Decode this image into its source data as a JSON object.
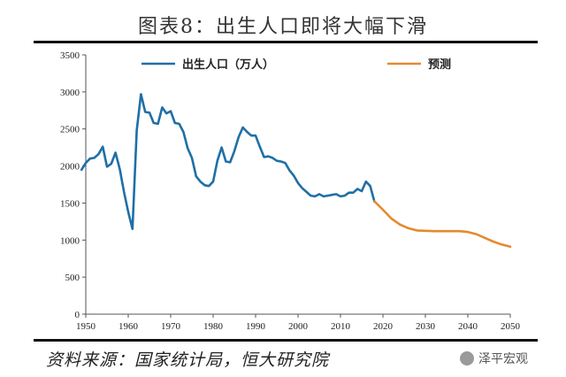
{
  "title": "图表8：出生人口即将大幅下滑",
  "source": "资料来源：国家统计局，恒大研究院",
  "watermark": "泽平宏观",
  "colors": {
    "actual": "#1f6fa6",
    "forecast": "#e58a2e",
    "axis": "#555555"
  },
  "chart_data": {
    "type": "line",
    "xlim": [
      1950,
      2050
    ],
    "ylim": [
      0,
      3500
    ],
    "xticks": [
      1950,
      1960,
      1970,
      1980,
      1990,
      2000,
      2010,
      2020,
      2030,
      2040,
      2050
    ],
    "yticks": [
      0,
      500,
      1000,
      1500,
      2000,
      2500,
      3000,
      3500
    ],
    "grid": false,
    "legend": "top",
    "series": [
      {
        "name": "出生人口（万人）",
        "color": "#1f6fa6",
        "x": [
          1949,
          1950,
          1951,
          1952,
          1953,
          1954,
          1955,
          1956,
          1957,
          1958,
          1959,
          1960,
          1961,
          1962,
          1963,
          1964,
          1965,
          1966,
          1967,
          1968,
          1969,
          1970,
          1971,
          1972,
          1973,
          1974,
          1975,
          1976,
          1977,
          1978,
          1979,
          1980,
          1981,
          1982,
          1983,
          1984,
          1985,
          1986,
          1987,
          1988,
          1989,
          1990,
          1991,
          1992,
          1993,
          1994,
          1995,
          1996,
          1997,
          1998,
          1999,
          2000,
          2001,
          2002,
          2003,
          2004,
          2005,
          2006,
          2007,
          2008,
          2009,
          2010,
          2011,
          2012,
          2013,
          2014,
          2015,
          2016,
          2017,
          2018
        ],
        "y": [
          1950,
          2042,
          2100,
          2110,
          2160,
          2260,
          1990,
          2030,
          2180,
          1960,
          1650,
          1380,
          1150,
          2480,
          2970,
          2730,
          2720,
          2580,
          2570,
          2790,
          2710,
          2740,
          2580,
          2570,
          2460,
          2240,
          2110,
          1860,
          1790,
          1740,
          1730,
          1790,
          2070,
          2250,
          2060,
          2050,
          2200,
          2390,
          2520,
          2460,
          2410,
          2410,
          2260,
          2120,
          2130,
          2110,
          2070,
          2060,
          2040,
          1940,
          1870,
          1770,
          1700,
          1650,
          1600,
          1590,
          1620,
          1590,
          1600,
          1610,
          1620,
          1590,
          1600,
          1640,
          1640,
          1690,
          1660,
          1790,
          1730,
          1520
        ]
      },
      {
        "name": "预测",
        "color": "#e58a2e",
        "x": [
          2018,
          2020,
          2022,
          2024,
          2026,
          2028,
          2030,
          2032,
          2034,
          2036,
          2038,
          2040,
          2042,
          2044,
          2046,
          2048,
          2050
        ],
        "y": [
          1523,
          1410,
          1290,
          1210,
          1160,
          1130,
          1125,
          1120,
          1120,
          1120,
          1120,
          1110,
          1080,
          1030,
          980,
          940,
          910
        ]
      }
    ]
  }
}
